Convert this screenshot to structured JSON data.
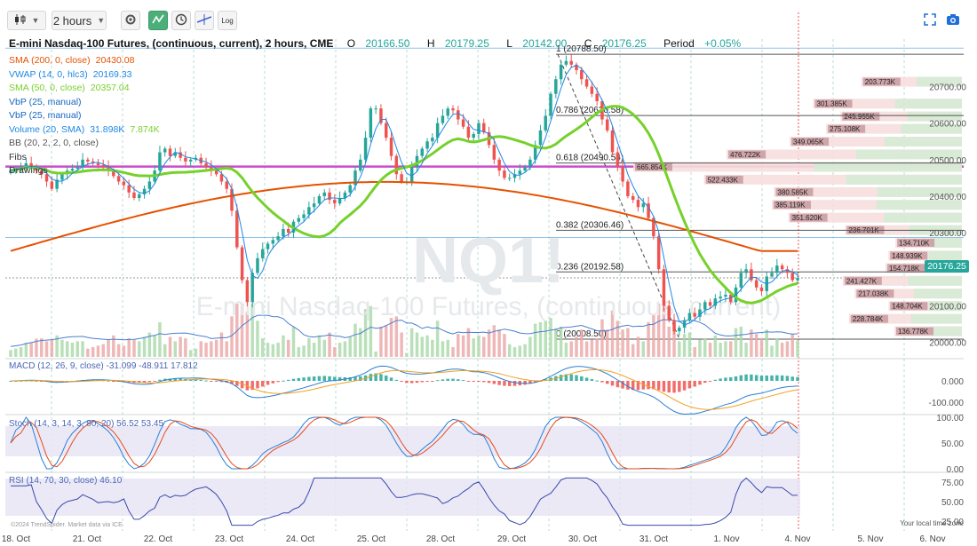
{
  "toolbar": {
    "chart_type_icon": "candlestick-icon",
    "interval_label": "2 hours",
    "settings_icon": "gear-icon",
    "indicators_icon": "indicators-icon",
    "clock_icon": "clock-icon",
    "drawing_icon": "drawing-tool-icon",
    "log_label": "Log",
    "fullscreen_icon": "fullscreen-icon",
    "camera_icon": "camera-icon"
  },
  "header": {
    "title": "E-mini Nasdaq-100 Futures, (continuous, current), 2 hours, CME",
    "open_label": "O",
    "open": "20166.50",
    "high_label": "H",
    "high": "20179.25",
    "low_label": "L",
    "low": "20142.00",
    "close_label": "C",
    "close": "20176.25",
    "period_label": "Period",
    "period_change": "+0.05%"
  },
  "legend": [
    {
      "label": "SMA (200, 0, close)",
      "value": "20430.08",
      "color": "#e65100"
    },
    {
      "label": "VWAP (14, 0, hlc3)",
      "value": "20169.33",
      "color": "#1e88e5"
    },
    {
      "label": "SMA (50, 0, close)",
      "value": "20357.04",
      "color": "#76d12b"
    },
    {
      "label": "VbP (25, manual)",
      "value": "",
      "color": "#1565c0"
    },
    {
      "label": "VbP (25, manual)",
      "value": "",
      "color": "#1565c0"
    },
    {
      "label": "Volume (20, SMA)",
      "value": "31.898K",
      "value2": "7.874K",
      "color": "#1e88e5"
    },
    {
      "label": "BB (20, 2, 2, 0, close)",
      "value": "",
      "color": "#555555"
    },
    {
      "label": "Fibs",
      "value": "",
      "color": "#333333"
    },
    {
      "label": "Drawings",
      "value": "",
      "color": "#333333"
    }
  ],
  "watermark": {
    "symbol": "NQ1!",
    "name": "E-mini Nasdaq-100 Futures, (continuous, current)"
  },
  "price_tag": "20176.25",
  "fib_levels": [
    {
      "label": "1 (20788.50)",
      "value": 20788.5
    },
    {
      "label": "0.786 (20620.58)",
      "value": 20620.58
    },
    {
      "label": "0.618 (20490.54)",
      "value": 20490.54
    },
    {
      "label": "0.382 (20306.46)",
      "value": 20306.46
    },
    {
      "label": "0.236 (20192.58)",
      "value": 20192.58
    },
    {
      "label": "0 (20008.50)",
      "value": 20008.5
    }
  ],
  "vbp_labels": [
    {
      "label": "203.773K",
      "price": 20712
    },
    {
      "label": "301.385K",
      "price": 20652
    },
    {
      "label": "245.955K",
      "price": 20617
    },
    {
      "label": "275.108K",
      "price": 20583
    },
    {
      "label": "349.065K",
      "price": 20548
    },
    {
      "label": "476.722K",
      "price": 20513
    },
    {
      "label": "665.854K",
      "price": 20479
    },
    {
      "label": "522.433K",
      "price": 20444
    },
    {
      "label": "380.585K",
      "price": 20410
    },
    {
      "label": "385.119K",
      "price": 20375
    },
    {
      "label": "351.620K",
      "price": 20340
    },
    {
      "label": "236.701K",
      "price": 20306
    },
    {
      "label": "134.710K",
      "price": 20271
    },
    {
      "label": "148.939K",
      "price": 20236
    },
    {
      "label": "154.718K",
      "price": 20202
    },
    {
      "label": "241.427K",
      "price": 20167
    },
    {
      "label": "217.038K",
      "price": 20132
    },
    {
      "label": "148.704K",
      "price": 20098
    },
    {
      "label": "228.784K",
      "price": 20063
    },
    {
      "label": "136.778K",
      "price": 20029
    }
  ],
  "indicators": {
    "macd": {
      "label": "MACD (12, 26, 9, close)",
      "v1": "-31.099",
      "v2": "-48.911",
      "v3": "17.812"
    },
    "stoch": {
      "label": "Stoch (14, 3, 14, 3, 80, 20)",
      "v1": "56.52",
      "v2": "53.45"
    },
    "rsi": {
      "label": "RSI (14, 70, 30, close)",
      "v1": "46.10"
    }
  },
  "footer": {
    "copyright": "©2024 TrendSpider. Market data via ICE",
    "local_time": "Your local time zone"
  },
  "colors": {
    "up": "#26a69a",
    "down": "#ef5350",
    "sma200": "#e65100",
    "sma50": "#76d12b",
    "vwap": "#1e88e5",
    "magenta": "#c020c0"
  },
  "chart_data": {
    "type": "candlestick",
    "interval": "2 hours",
    "x_tick_labels": [
      "18. Oct",
      "21. Oct",
      "22. Oct",
      "23. Oct",
      "24. Oct",
      "25. Oct",
      "28. Oct",
      "29. Oct",
      "30. Oct",
      "31. Oct",
      "1. Nov",
      "4. Nov",
      "5. Nov",
      "6. Nov"
    ],
    "y_tick_labels": [
      "20000.00",
      "20100.00",
      "20200.00",
      "20300.00",
      "20400.00",
      "20500.00",
      "20600.00",
      "20700.00"
    ],
    "ylim": [
      19960,
      20830
    ],
    "closes": [
      20470,
      20475,
      20480,
      20490,
      20482,
      20470,
      20460,
      20440,
      20420,
      20445,
      20460,
      20470,
      20475,
      20480,
      20500,
      20495,
      20490,
      20485,
      20480,
      20470,
      20455,
      20440,
      20430,
      20410,
      20395,
      20405,
      20420,
      20440,
      20470,
      20520,
      20530,
      20510,
      20520,
      20505,
      20495,
      20500,
      20505,
      20490,
      20480,
      20470,
      20460,
      20440,
      20420,
      20360,
      20260,
      20170,
      20110,
      20190,
      20230,
      20255,
      20270,
      20280,
      20290,
      20310,
      20300,
      20330,
      20340,
      20350,
      20370,
      20380,
      20400,
      20410,
      20390,
      20380,
      20395,
      20410,
      20430,
      20470,
      20500,
      20560,
      20640,
      20640,
      20600,
      20560,
      20510,
      20460,
      20440,
      20440,
      20480,
      20510,
      20530,
      20550,
      20560,
      20600,
      20620,
      20640,
      20635,
      20610,
      20590,
      20560,
      20570,
      20600,
      20575,
      20540,
      20500,
      20470,
      20450,
      20450,
      20460,
      20470,
      20480,
      20500,
      20540,
      20580,
      20620,
      20680,
      20720,
      20760,
      20770,
      20760,
      20745,
      20720,
      20700,
      20680,
      20660,
      20610,
      20580,
      20520,
      20480,
      20440,
      20400,
      20390,
      20370,
      20380,
      20340,
      20290,
      20200,
      20100,
      20060,
      20030,
      20040,
      20060,
      20080,
      20070,
      20090,
      20110,
      20100,
      20120,
      20125,
      20130,
      20110,
      20150,
      20190,
      20200,
      20170,
      20150,
      20140,
      20180,
      20190,
      20210,
      20200,
      20190,
      20170,
      20176.25
    ],
    "sma200_description": "declining from about 20480 to about 20430, rising through the middle",
    "sma50_last": 20357.04,
    "sma200_last": 20430.08,
    "vwap_last": 20169.33,
    "macd_ylim": [
      -150,
      100
    ],
    "macd_ticks": [
      "0.000",
      "-100.000"
    ],
    "stoch_ticks": [
      "100.00",
      "50.00",
      "0.00"
    ],
    "rsi_ticks": [
      "75.00",
      "50.00",
      "25.00"
    ]
  }
}
